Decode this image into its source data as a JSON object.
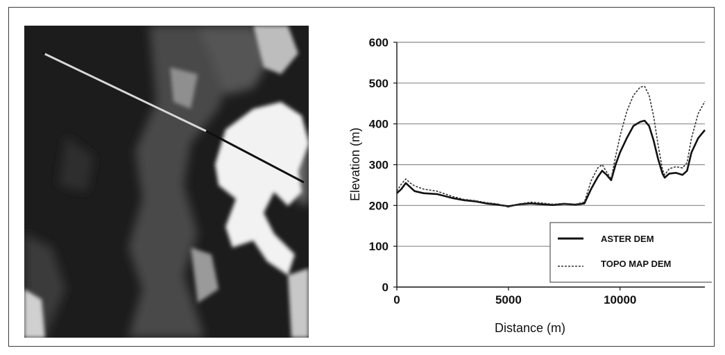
{
  "figure": {
    "dem_image": {
      "description_icon": "grayscale-elevation-raster",
      "colors": {
        "low": "#1a1a1a",
        "mid": "#7a7a7a",
        "high": "#f4f4f4",
        "profile_light": "#d8d8d8",
        "profile_dark": "#101010"
      }
    }
  },
  "chart_data": {
    "type": "line",
    "xlabel": "Distance (m)",
    "ylabel": "Elevation (m)",
    "xlim": [
      0,
      13800
    ],
    "ylim": [
      0,
      600
    ],
    "x_ticks": [
      0,
      5000,
      10000
    ],
    "y_ticks": [
      0,
      100,
      200,
      300,
      400,
      500,
      600
    ],
    "grid": "horizontal",
    "legend_position": "bottom-right",
    "series": [
      {
        "name": "ASTER DEM",
        "style": "solid",
        "color": "#111111",
        "points": [
          [
            0,
            230
          ],
          [
            200,
            240
          ],
          [
            400,
            255
          ],
          [
            600,
            245
          ],
          [
            800,
            235
          ],
          [
            1200,
            230
          ],
          [
            1800,
            228
          ],
          [
            2500,
            218
          ],
          [
            3000,
            213
          ],
          [
            3500,
            210
          ],
          [
            4000,
            205
          ],
          [
            4500,
            202
          ],
          [
            5000,
            198
          ],
          [
            5500,
            203
          ],
          [
            6000,
            205
          ],
          [
            6500,
            203
          ],
          [
            7000,
            201
          ],
          [
            7500,
            204
          ],
          [
            8000,
            202
          ],
          [
            8400,
            205
          ],
          [
            8700,
            240
          ],
          [
            9000,
            270
          ],
          [
            9200,
            285
          ],
          [
            9400,
            275
          ],
          [
            9600,
            262
          ],
          [
            9800,
            300
          ],
          [
            10000,
            330
          ],
          [
            10300,
            365
          ],
          [
            10600,
            395
          ],
          [
            10900,
            405
          ],
          [
            11100,
            408
          ],
          [
            11300,
            395
          ],
          [
            11500,
            360
          ],
          [
            11700,
            315
          ],
          [
            11900,
            278
          ],
          [
            12000,
            268
          ],
          [
            12200,
            278
          ],
          [
            12500,
            280
          ],
          [
            12800,
            275
          ],
          [
            13000,
            285
          ],
          [
            13200,
            330
          ],
          [
            13500,
            365
          ],
          [
            13800,
            385
          ]
        ]
      },
      {
        "name": "TOPO MAP DEM",
        "style": "dashed",
        "color": "#333333",
        "points": [
          [
            0,
            235
          ],
          [
            200,
            252
          ],
          [
            400,
            265
          ],
          [
            600,
            255
          ],
          [
            800,
            248
          ],
          [
            1200,
            240
          ],
          [
            1800,
            235
          ],
          [
            2500,
            222
          ],
          [
            3000,
            215
          ],
          [
            3500,
            212
          ],
          [
            4000,
            207
          ],
          [
            4500,
            204
          ],
          [
            5000,
            196
          ],
          [
            5500,
            204
          ],
          [
            6000,
            208
          ],
          [
            6500,
            206
          ],
          [
            7000,
            203
          ],
          [
            7500,
            205
          ],
          [
            8000,
            203
          ],
          [
            8400,
            208
          ],
          [
            8700,
            260
          ],
          [
            9000,
            292
          ],
          [
            9200,
            300
          ],
          [
            9400,
            282
          ],
          [
            9600,
            265
          ],
          [
            9800,
            320
          ],
          [
            10000,
            370
          ],
          [
            10300,
            430
          ],
          [
            10600,
            470
          ],
          [
            10900,
            490
          ],
          [
            11100,
            492
          ],
          [
            11300,
            470
          ],
          [
            11500,
            420
          ],
          [
            11700,
            350
          ],
          [
            11900,
            288
          ],
          [
            12000,
            275
          ],
          [
            12200,
            290
          ],
          [
            12500,
            295
          ],
          [
            12800,
            292
          ],
          [
            13000,
            305
          ],
          [
            13200,
            365
          ],
          [
            13500,
            425
          ],
          [
            13800,
            455
          ]
        ]
      }
    ]
  }
}
